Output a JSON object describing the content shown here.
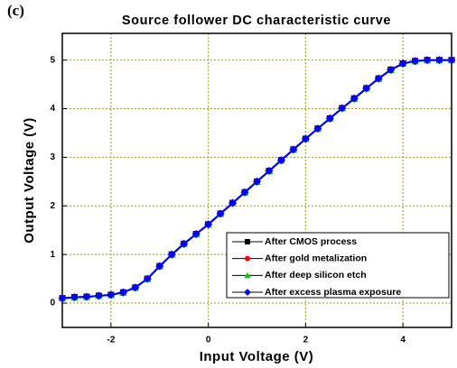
{
  "chart_data": {
    "type": "line",
    "title": "Source follower DC characteristic curve",
    "annotation": "(c)",
    "xlabel": "Input Voltage (V)",
    "ylabel": "Output Voltage (V)",
    "x": [
      -3,
      -2.75,
      -2.5,
      -2.25,
      -2,
      -1.75,
      -1.5,
      -1.25,
      -1,
      -0.75,
      -0.5,
      -0.25,
      0,
      0.25,
      0.5,
      0.75,
      1,
      1.25,
      1.5,
      1.75,
      2,
      2.25,
      2.5,
      2.75,
      3,
      3.25,
      3.5,
      3.75,
      4,
      4.25,
      4.5,
      4.75,
      5
    ],
    "series": [
      {
        "name": "After CMOS process",
        "color": "#000000",
        "marker": "square",
        "values": [
          0.1,
          0.12,
          0.13,
          0.15,
          0.17,
          0.22,
          0.32,
          0.5,
          0.76,
          1.0,
          1.22,
          1.42,
          1.62,
          1.84,
          2.06,
          2.28,
          2.5,
          2.72,
          2.94,
          3.16,
          3.38,
          3.59,
          3.8,
          4.01,
          4.21,
          4.42,
          4.62,
          4.8,
          4.93,
          4.98,
          5.0,
          5.0,
          5.0
        ]
      },
      {
        "name": "After gold metalization",
        "color": "#ff0000",
        "marker": "circle",
        "values": [
          0.1,
          0.12,
          0.13,
          0.15,
          0.17,
          0.22,
          0.32,
          0.5,
          0.76,
          1.0,
          1.22,
          1.42,
          1.62,
          1.84,
          2.06,
          2.28,
          2.5,
          2.72,
          2.94,
          3.16,
          3.38,
          3.59,
          3.8,
          4.01,
          4.21,
          4.42,
          4.62,
          4.8,
          4.93,
          4.98,
          5.0,
          5.0,
          5.0
        ]
      },
      {
        "name": "After deep silicon etch",
        "color": "#00cc00",
        "marker": "triangle",
        "values": [
          0.1,
          0.12,
          0.13,
          0.15,
          0.17,
          0.22,
          0.32,
          0.5,
          0.76,
          1.0,
          1.22,
          1.42,
          1.62,
          1.84,
          2.06,
          2.28,
          2.5,
          2.72,
          2.94,
          3.16,
          3.38,
          3.59,
          3.8,
          4.01,
          4.21,
          4.42,
          4.62,
          4.8,
          4.93,
          4.98,
          5.0,
          5.0,
          5.0
        ]
      },
      {
        "name": "After excess plasma exposure",
        "color": "#0000ff",
        "marker": "diamond",
        "values": [
          0.1,
          0.12,
          0.13,
          0.15,
          0.17,
          0.22,
          0.32,
          0.5,
          0.76,
          1.0,
          1.22,
          1.42,
          1.62,
          1.84,
          2.06,
          2.28,
          2.5,
          2.72,
          2.94,
          3.16,
          3.38,
          3.59,
          3.8,
          4.01,
          4.21,
          4.42,
          4.62,
          4.8,
          4.93,
          4.98,
          5.0,
          5.0,
          5.0
        ]
      }
    ],
    "xlim": [
      -3,
      5
    ],
    "xticks": [
      -2,
      0,
      2,
      4
    ],
    "ylim": [
      -0.5,
      5.55
    ],
    "yticks": [
      0,
      1,
      2,
      3,
      4,
      5
    ],
    "grid": true,
    "grid_color": "#999933",
    "legend": "lower right"
  }
}
